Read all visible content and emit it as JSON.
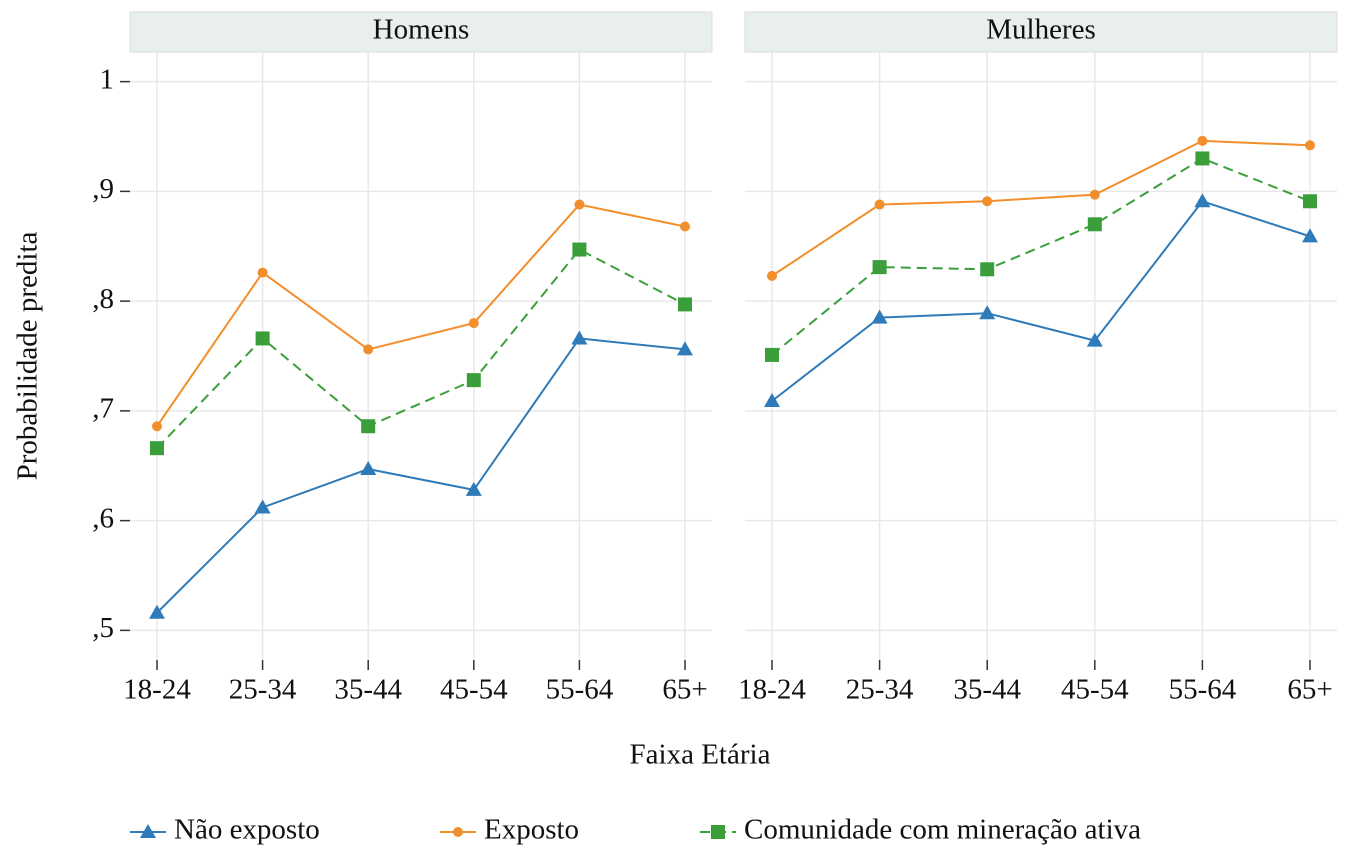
{
  "chart_data": [
    {
      "type": "line",
      "title": "Homens",
      "categories": [
        "18-24",
        "25-34",
        "35-44",
        "45-54",
        "55-64",
        "65+"
      ],
      "ylim": [
        0.473,
        1.027
      ],
      "yticks": [
        {
          "value": 0.5,
          "label": ",5"
        },
        {
          "value": 0.6,
          "label": ",6"
        },
        {
          "value": 0.7,
          "label": ",7"
        },
        {
          "value": 0.8,
          "label": ",8"
        },
        {
          "value": 0.9,
          "label": ",9"
        },
        1
      ],
      "grid": true,
      "series": [
        {
          "name": "Não exposto",
          "color": "#2f7ab8",
          "marker": "triangle",
          "dash": false,
          "values": [
            0.516,
            0.612,
            0.647,
            0.628,
            0.766,
            0.756
          ]
        },
        {
          "name": "Exposto",
          "color": "#f28e2b",
          "marker": "circle",
          "dash": false,
          "values": [
            0.686,
            0.826,
            0.756,
            0.78,
            0.888,
            0.868
          ]
        },
        {
          "name": "Comunidade com mineração ativa",
          "color": "#3a9f3a",
          "marker": "square",
          "dash": true,
          "values": [
            0.666,
            0.766,
            0.686,
            0.728,
            0.847,
            0.797
          ]
        }
      ]
    },
    {
      "type": "line",
      "title": "Mulheres",
      "categories": [
        "18-24",
        "25-34",
        "35-44",
        "45-54",
        "55-64",
        "65+"
      ],
      "ylim": [
        0.473,
        1.027
      ],
      "yticks": [
        {
          "value": 0.5,
          "label": ",5"
        },
        {
          "value": 0.6,
          "label": ",6"
        },
        {
          "value": 0.7,
          "label": ",7"
        },
        {
          "value": 0.8,
          "label": ",8"
        },
        {
          "value": 0.9,
          "label": ",9"
        },
        1
      ],
      "grid": true,
      "series": [
        {
          "name": "Não exposto",
          "color": "#2f7ab8",
          "marker": "triangle",
          "dash": false,
          "values": [
            0.709,
            0.785,
            0.789,
            0.764,
            0.891,
            0.859
          ]
        },
        {
          "name": "Exposto",
          "color": "#f28e2b",
          "marker": "circle",
          "dash": false,
          "values": [
            0.823,
            0.888,
            0.891,
            0.897,
            0.946,
            0.942
          ]
        },
        {
          "name": "Comunidade com mineração ativa",
          "color": "#3a9f3a",
          "marker": "square",
          "dash": true,
          "values": [
            0.751,
            0.831,
            0.829,
            0.87,
            0.93,
            0.891
          ]
        }
      ]
    }
  ],
  "xlabel": "Faixa Etária",
  "ylabel": "Probabilidade predita"
}
